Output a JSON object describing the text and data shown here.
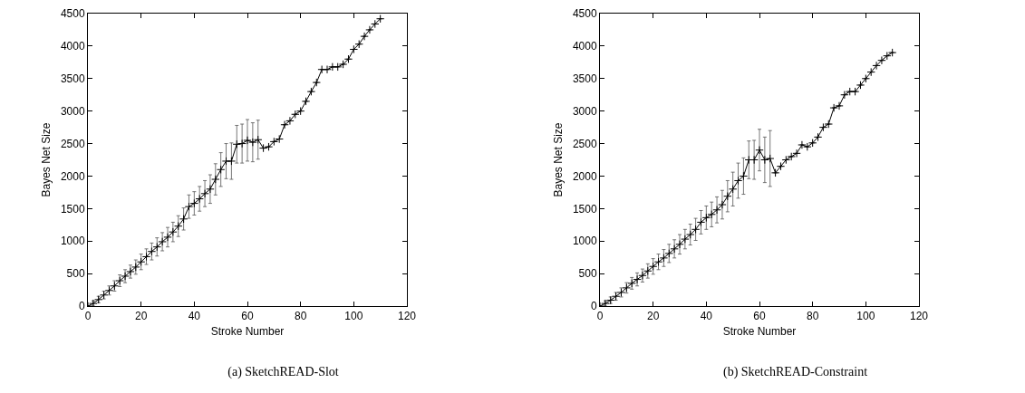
{
  "chart_data": [
    {
      "type": "line",
      "title": "(a) SketchREAD-Slot",
      "xlabel": "Stroke Number",
      "ylabel": "Bayes Net Size",
      "x": [
        0,
        2,
        4,
        6,
        8,
        10,
        12,
        14,
        16,
        18,
        20,
        22,
        24,
        26,
        28,
        30,
        32,
        34,
        36,
        38,
        40,
        42,
        44,
        46,
        48,
        50,
        52,
        54,
        56,
        58,
        60,
        62,
        64,
        66,
        68,
        70,
        72,
        74,
        76,
        78,
        80,
        82,
        84,
        86,
        88,
        90,
        92,
        94,
        96,
        98,
        100,
        102,
        104,
        106,
        108,
        110
      ],
      "series": [
        {
          "color": "#000000",
          "values": [
            0,
            40,
            100,
            170,
            240,
            310,
            390,
            460,
            530,
            600,
            680,
            760,
            840,
            910,
            990,
            1060,
            1140,
            1230,
            1340,
            1530,
            1580,
            1650,
            1730,
            1800,
            1950,
            2100,
            2230,
            2230,
            2490,
            2500,
            2550,
            2520,
            2560,
            2430,
            2450,
            2530,
            2570,
            2790,
            2850,
            2950,
            3000,
            3150,
            3300,
            3440,
            3640,
            3640,
            3680,
            3680,
            3720,
            3800,
            3950,
            4030,
            4150,
            4250,
            4340,
            4420
          ],
          "errors": [
            null,
            40,
            50,
            60,
            70,
            80,
            90,
            100,
            100,
            110,
            120,
            120,
            130,
            140,
            140,
            150,
            150,
            160,
            170,
            180,
            180,
            190,
            200,
            220,
            240,
            260,
            270,
            280,
            290,
            300,
            320,
            300,
            300,
            null,
            null,
            null,
            null,
            null,
            null,
            null,
            null,
            null,
            null,
            null,
            null,
            null,
            null,
            null,
            null,
            null,
            null,
            null,
            null,
            null,
            null,
            null
          ]
        }
      ],
      "xlim": [
        0,
        120
      ],
      "xticks": [
        0,
        20,
        40,
        60,
        80,
        100,
        120
      ],
      "ylim": [
        0,
        4500
      ],
      "yticks": [
        0,
        500,
        1000,
        1500,
        2000,
        2500,
        3000,
        3500,
        4000,
        4500
      ],
      "grid": false,
      "marker": "cross",
      "line_style": "solid"
    },
    {
      "type": "line",
      "title": "(b) SketchREAD-Constraint",
      "xlabel": "Stroke Number",
      "ylabel": "Bayes Net Size",
      "x": [
        0,
        2,
        4,
        6,
        8,
        10,
        12,
        14,
        16,
        18,
        20,
        22,
        24,
        26,
        28,
        30,
        32,
        34,
        36,
        38,
        40,
        42,
        44,
        46,
        48,
        50,
        52,
        54,
        56,
        58,
        60,
        62,
        64,
        66,
        68,
        70,
        72,
        74,
        76,
        78,
        80,
        82,
        84,
        86,
        88,
        90,
        92,
        94,
        96,
        98,
        100,
        102,
        104,
        106,
        108,
        110
      ],
      "series": [
        {
          "color": "#000000",
          "values": [
            0,
            40,
            90,
            150,
            210,
            280,
            350,
            410,
            470,
            540,
            610,
            680,
            740,
            810,
            880,
            950,
            1030,
            1100,
            1180,
            1290,
            1360,
            1410,
            1480,
            1560,
            1690,
            1800,
            1930,
            2000,
            2250,
            2250,
            2400,
            2250,
            2270,
            2050,
            2150,
            2250,
            2300,
            2350,
            2480,
            2450,
            2510,
            2600,
            2750,
            2800,
            3050,
            3080,
            3250,
            3300,
            3300,
            3400,
            3500,
            3600,
            3700,
            3780,
            3850,
            3900
          ],
          "errors": [
            null,
            40,
            50,
            60,
            70,
            80,
            90,
            100,
            100,
            110,
            120,
            120,
            130,
            140,
            140,
            150,
            150,
            160,
            170,
            180,
            180,
            190,
            200,
            220,
            240,
            260,
            270,
            280,
            290,
            300,
            320,
            350,
            430,
            null,
            null,
            null,
            null,
            null,
            null,
            null,
            null,
            null,
            null,
            null,
            null,
            null,
            null,
            null,
            null,
            null,
            null,
            null,
            null,
            null,
            null,
            null
          ]
        }
      ],
      "xlim": [
        0,
        120
      ],
      "xticks": [
        0,
        20,
        40,
        60,
        80,
        100,
        120
      ],
      "ylim": [
        0,
        4500
      ],
      "yticks": [
        0,
        500,
        1000,
        1500,
        2000,
        2500,
        3000,
        3500,
        4000,
        4500
      ],
      "grid": false,
      "marker": "cross",
      "line_style": "solid"
    }
  ]
}
